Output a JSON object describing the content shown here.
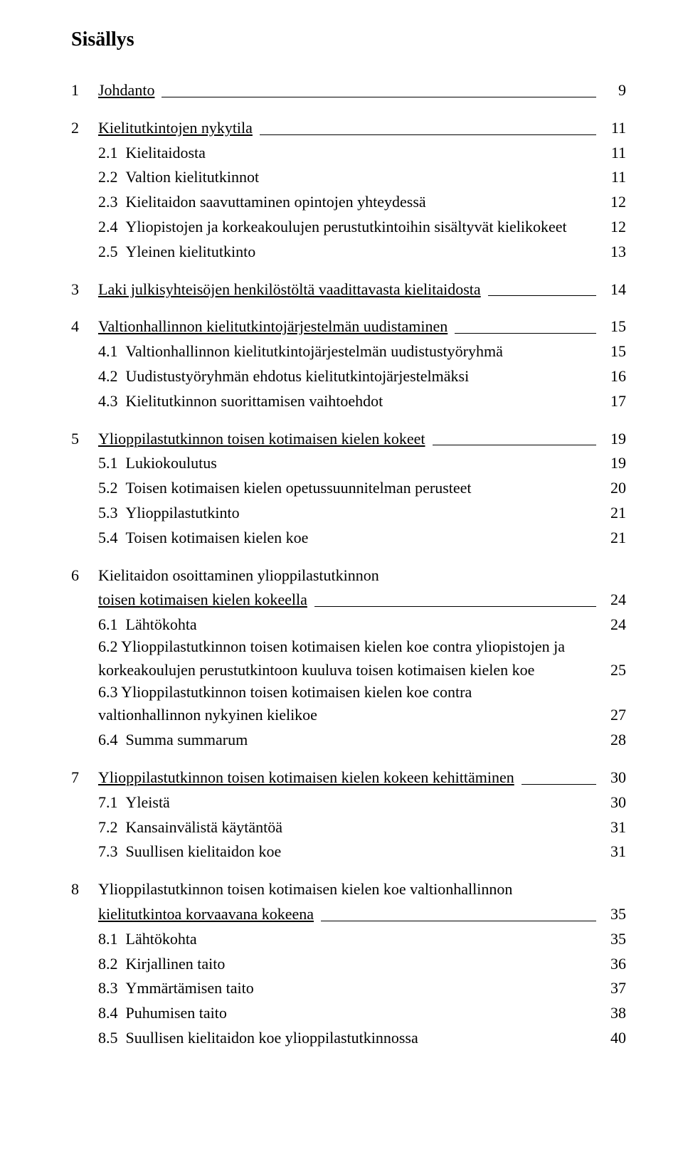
{
  "title": "Sisällys",
  "toc": {
    "s1": {
      "num": "1",
      "label": "Johdanto",
      "page": "9"
    },
    "s2": {
      "num": "2",
      "label": "Kielitutkintojen nykytila",
      "page": "11"
    },
    "s2_1": {
      "num": "2.1",
      "label": "Kielitaidosta",
      "page": "11"
    },
    "s2_2": {
      "num": "2.2",
      "label": "Valtion kielitutkinnot",
      "page": "11"
    },
    "s2_3": {
      "num": "2.3",
      "label": "Kielitaidon saavuttaminen opintojen yhteydessä",
      "page": "12"
    },
    "s2_4": {
      "num": "2.4",
      "label": "Yliopistojen ja korkeakoulujen perustutkintoihin sisältyvät kielikokeet",
      "page": "12"
    },
    "s2_5": {
      "num": "2.5",
      "label": "Yleinen kielitutkinto",
      "page": "13"
    },
    "s3": {
      "num": "3",
      "label": "Laki julkisyhteisöjen henkilöstöltä vaadittavasta kielitaidosta",
      "page": "14"
    },
    "s4": {
      "num": "4",
      "label": "Valtionhallinnon kielitutkintojärjestelmän uudistaminen",
      "page": "15"
    },
    "s4_1": {
      "num": "4.1",
      "label": "Valtionhallinnon kielitutkintojärjestelmän uudistustyöryhmä",
      "page": "15"
    },
    "s4_2": {
      "num": "4.2",
      "label": "Uudistustyöryhmän ehdotus kielitutkintojärjestelmäksi",
      "page": "16"
    },
    "s4_3": {
      "num": "4.3",
      "label": "Kielitutkinnon suorittamisen vaihtoehdot",
      "page": "17"
    },
    "s5": {
      "num": "5",
      "label": "Ylioppilastutkinnon toisen kotimaisen kielen kokeet",
      "page": "19"
    },
    "s5_1": {
      "num": "5.1",
      "label": "Lukiokoulutus",
      "page": "19"
    },
    "s5_2": {
      "num": "5.2",
      "label": "Toisen kotimaisen kielen opetussuunnitelman perusteet",
      "page": "20"
    },
    "s5_3": {
      "num": "5.3",
      "label": "Ylioppilastutkinto",
      "page": "21"
    },
    "s5_4": {
      "num": "5.4",
      "label": "Toisen kotimaisen kielen koe",
      "page": "21"
    },
    "s6": {
      "num": "6",
      "label_a": "Kielitaidon osoittaminen ylioppilastutkinnon",
      "label_b": "toisen kotimaisen kielen kokeella",
      "page": "24"
    },
    "s6_1": {
      "num": "6.1",
      "label": "Lähtökohta",
      "page": "24"
    },
    "s6_2": {
      "label_a": "6.2  Ylioppilastutkinnon toisen kotimaisen kielen koe contra yliopistojen ja",
      "label_b": "korkeakoulujen perustutkintoon kuuluva toisen kotimaisen kielen koe",
      "page": "25"
    },
    "s6_3": {
      "label_a": "6.3  Ylioppilastutkinnon toisen kotimaisen kielen koe contra",
      "label_b": "valtionhallinnon nykyinen kielikoe",
      "page": "27"
    },
    "s6_4": {
      "num": "6.4",
      "label": "Summa summarum",
      "page": "28"
    },
    "s7": {
      "num": "7",
      "label": "Ylioppilastutkinnon toisen kotimaisen kielen kokeen kehittäminen",
      "page": "30"
    },
    "s7_1": {
      "num": "7.1",
      "label": "Yleistä",
      "page": "30"
    },
    "s7_2": {
      "num": "7.2",
      "label": "Kansainvälistä käytäntöä",
      "page": "31"
    },
    "s7_3": {
      "num": "7.3",
      "label": "Suullisen kielitaidon koe",
      "page": "31"
    },
    "s8": {
      "num": "8",
      "label_a": "Ylioppilastutkinnon toisen kotimaisen kielen koe valtionhallinnon",
      "label_b": "kielitutkintoa korvaavana kokeena",
      "page": "35"
    },
    "s8_1": {
      "num": "8.1",
      "label": "Lähtökohta",
      "page": "35"
    },
    "s8_2": {
      "num": "8.2",
      "label": "Kirjallinen taito",
      "page": "36"
    },
    "s8_3": {
      "num": "8.3",
      "label": "Ymmärtämisen taito",
      "page": "37"
    },
    "s8_4": {
      "num": "8.4",
      "label": "Puhumisen taito",
      "page": "38"
    },
    "s8_5": {
      "num": "8.5",
      "label": "Suullisen kielitaidon koe ylioppilastutkinnossa",
      "page": "40"
    }
  }
}
